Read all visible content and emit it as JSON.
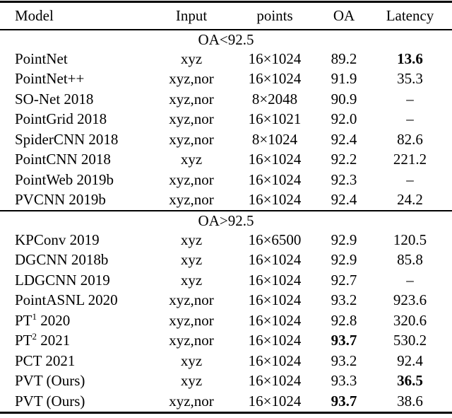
{
  "table": {
    "columns": [
      "Model",
      "Input",
      "points",
      "OA",
      "Latency"
    ],
    "sections": [
      {
        "header": "OA<92.5",
        "rows": [
          {
            "model": "PointNet",
            "input": "xyz",
            "points": "16×1024",
            "oa": "89.2",
            "latency": "13.6"
          },
          {
            "model": "PointNet++",
            "input": "xyz,nor",
            "points": "16×1024",
            "oa": "91.9",
            "latency": "35.3"
          },
          {
            "model": "SO-Net 2018",
            "input": "xyz,nor",
            "points": "8×2048",
            "oa": "90.9",
            "latency": "–"
          },
          {
            "model": "PointGrid 2018",
            "input": "xyz,nor",
            "points": "16×1021",
            "oa": "92.0",
            "latency": "–"
          },
          {
            "model": "SpiderCNN 2018",
            "input": "xyz,nor",
            "points": "8×1024",
            "oa": "92.4",
            "latency": "82.6"
          },
          {
            "model": "PointCNN 2018",
            "input": "xyz",
            "points": "16×1024",
            "oa": "92.2",
            "latency": "221.2"
          },
          {
            "model": "PointWeb 2019b",
            "input": "xyz,nor",
            "points": "16×1024",
            "oa": "92.3",
            "latency": "–"
          },
          {
            "model": "PVCNN 2019b",
            "input": "xyz,nor",
            "points": "16×1024",
            "oa": "92.4",
            "latency": "24.2"
          }
        ]
      },
      {
        "header": "OA>92.5",
        "rows": [
          {
            "model": "KPConv 2019",
            "input": "xyz",
            "points": "16×6500",
            "oa": "92.9",
            "latency": "120.5"
          },
          {
            "model": "DGCNN 2018b",
            "input": "xyz",
            "points": "16×1024",
            "oa": "92.9",
            "latency": "85.8"
          },
          {
            "model": "LDGCNN 2019",
            "input": "xyz",
            "points": "16×1024",
            "oa": "92.7",
            "latency": "–"
          },
          {
            "model": "PointASNL 2020",
            "input": "xyz,nor",
            "points": "16×1024",
            "oa": "93.2",
            "latency": "923.6"
          },
          {
            "model": "PT",
            "model_sup": "1",
            "model_rest": " 2020",
            "input": "xyz,nor",
            "points": "16×1024",
            "oa": "92.8",
            "latency": "320.6"
          },
          {
            "model": "PT",
            "model_sup": "2",
            "model_rest": " 2021",
            "input": "xyz,nor",
            "points": "16×1024",
            "oa": "93.7",
            "latency": "530.2"
          },
          {
            "model": "PCT 2021",
            "input": "xyz",
            "points": "16×1024",
            "oa": "93.2",
            "latency": "92.4"
          },
          {
            "model": "PVT (Ours)",
            "input": "xyz",
            "points": "16×1024",
            "oa": "93.3",
            "latency": "36.5"
          },
          {
            "model": "PVT (Ours)",
            "input": "xyz,nor",
            "points": "16×1024",
            "oa": "93.7",
            "latency": "38.6"
          }
        ]
      }
    ]
  }
}
